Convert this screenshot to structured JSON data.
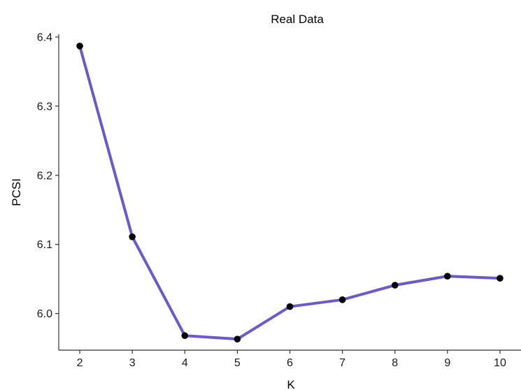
{
  "chart_data": {
    "type": "line",
    "title": "Real Data",
    "xlabel": "K",
    "ylabel": "PCSI",
    "x": [
      2,
      3,
      4,
      5,
      6,
      7,
      8,
      9,
      10
    ],
    "series": [
      {
        "values": [
          6.387,
          6.111,
          5.968,
          5.963,
          6.01,
          6.02,
          6.041,
          6.054,
          6.051
        ]
      }
    ],
    "x_ticks": [
      "2",
      "3",
      "4",
      "5",
      "6",
      "7",
      "8",
      "9",
      "10"
    ],
    "y_ticks": [
      "6.0",
      "6.1",
      "6.2",
      "6.3",
      "6.4"
    ],
    "xlim": [
      1.6,
      10.4
    ],
    "ylim": [
      5.947,
      6.404
    ],
    "grid": false,
    "line_color": "#6a5acd",
    "point_color": "#000000"
  }
}
